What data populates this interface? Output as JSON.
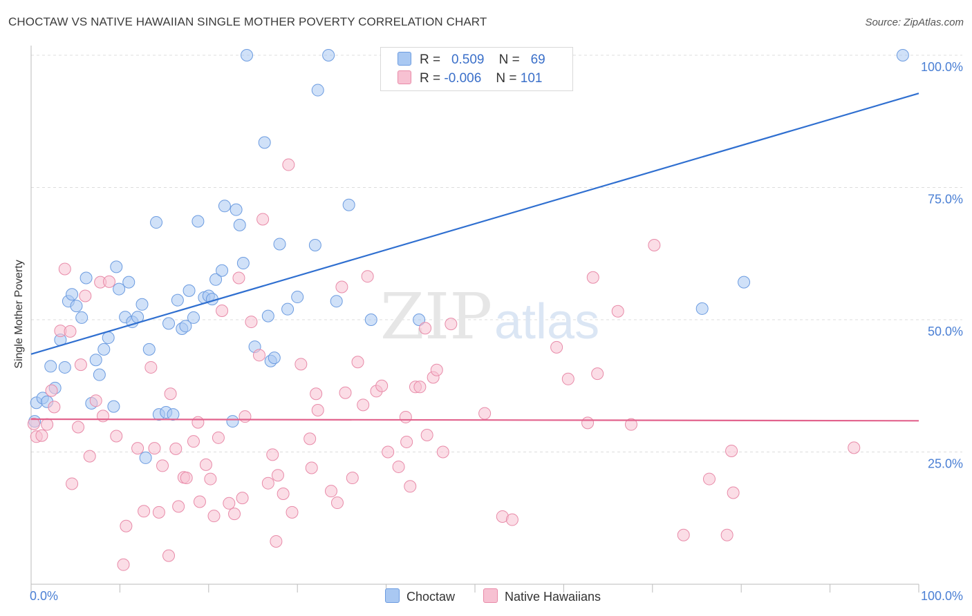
{
  "title": "CHOCTAW VS NATIVE HAWAIIAN SINGLE MOTHER POVERTY CORRELATION CHART",
  "source": "Source: ZipAtlas.com",
  "watermark": {
    "zip": "ZIP",
    "atlas": "atlas"
  },
  "legend": {
    "rows": [
      {
        "r_label": "R =",
        "r_value": "0.509",
        "n_label": "N =",
        "n_value": "69",
        "color": "#a9c8f2",
        "edge": "#6b9be0"
      },
      {
        "r_label": "R =",
        "r_value": "-0.006",
        "n_label": "N =",
        "n_value": "101",
        "color": "#f7c1d2",
        "edge": "#e88aa8"
      }
    ]
  },
  "bottom_legend": [
    {
      "label": "Choctaw",
      "color": "#a9c8f2",
      "edge": "#6b9be0"
    },
    {
      "label": "Native Hawaiians",
      "color": "#f7c1d2",
      "edge": "#e88aa8"
    }
  ],
  "chart_data": {
    "type": "scatter",
    "title": "CHOCTAW VS NATIVE HAWAIIAN SINGLE MOTHER POVERTY CORRELATION CHART",
    "xlabel": "",
    "ylabel": "Single Mother Poverty",
    "xlim": [
      0,
      100
    ],
    "ylim": [
      0,
      100
    ],
    "x_tick_labels": [
      {
        "value": 0,
        "label": "0.0%"
      },
      {
        "value": 100,
        "label": "100.0%"
      }
    ],
    "y_tick_labels": [
      {
        "value": 25,
        "label": "25.0%"
      },
      {
        "value": 50,
        "label": "50.0%"
      },
      {
        "value": 75,
        "label": "75.0%"
      },
      {
        "value": 100,
        "label": "100.0%"
      }
    ],
    "grid": "horizontal dashed",
    "legend_position": "top-center",
    "series": [
      {
        "name": "Choctaw",
        "color": "#a9c8f2",
        "edge": "#6b9be0",
        "trend": {
          "x": [
            0,
            100
          ],
          "y": [
            43.5,
            92.8
          ],
          "color": "#2f6fd0"
        },
        "points": [
          [
            0.4,
            30.8
          ],
          [
            0.6,
            34.3
          ],
          [
            1.3,
            35.2
          ],
          [
            1.8,
            34.5
          ],
          [
            2.2,
            41.2
          ],
          [
            2.7,
            37.1
          ],
          [
            3.3,
            46.2
          ],
          [
            3.8,
            41
          ],
          [
            4.2,
            53.5
          ],
          [
            4.6,
            54.8
          ],
          [
            5.1,
            52.6
          ],
          [
            5.7,
            50.4
          ],
          [
            6.2,
            57.9
          ],
          [
            6.8,
            34.2
          ],
          [
            7.3,
            42.4
          ],
          [
            7.7,
            39.6
          ],
          [
            8.2,
            44.4
          ],
          [
            8.7,
            46.6
          ],
          [
            9.3,
            33.6
          ],
          [
            9.6,
            60
          ],
          [
            9.9,
            55.8
          ],
          [
            10.6,
            50.5
          ],
          [
            11,
            57.1
          ],
          [
            11.4,
            49.6
          ],
          [
            12,
            50.5
          ],
          [
            12.5,
            52.9
          ],
          [
            12.9,
            23.9
          ],
          [
            13.3,
            44.4
          ],
          [
            14.1,
            68.4
          ],
          [
            14.4,
            32.1
          ],
          [
            15.2,
            32.5
          ],
          [
            15.5,
            49.3
          ],
          [
            16,
            32.1
          ],
          [
            16.5,
            53.7
          ],
          [
            17,
            48.3
          ],
          [
            17.4,
            48.8
          ],
          [
            17.8,
            55.5
          ],
          [
            18.3,
            50.4
          ],
          [
            18.8,
            68.6
          ],
          [
            19.5,
            54.2
          ],
          [
            20,
            54.5
          ],
          [
            20.4,
            53.9
          ],
          [
            20.8,
            57.6
          ],
          [
            21.5,
            59.3
          ],
          [
            21.8,
            71.5
          ],
          [
            22.7,
            30.8
          ],
          [
            23.1,
            70.8
          ],
          [
            23.5,
            67.9
          ],
          [
            23.9,
            60.7
          ],
          [
            24.3,
            100
          ],
          [
            25.2,
            44.9
          ],
          [
            26.3,
            83.5
          ],
          [
            26.7,
            50.7
          ],
          [
            27,
            42.2
          ],
          [
            27.4,
            42.8
          ],
          [
            28,
            64.3
          ],
          [
            28.9,
            52
          ],
          [
            30,
            54.3
          ],
          [
            32,
            64.1
          ],
          [
            32.3,
            93.4
          ],
          [
            33.5,
            100
          ],
          [
            34.4,
            53.5
          ],
          [
            35.8,
            71.7
          ],
          [
            38.3,
            50
          ],
          [
            43.7,
            50
          ],
          [
            48.2,
            100
          ],
          [
            75.6,
            52.1
          ],
          [
            80.3,
            57.1
          ],
          [
            98.2,
            100
          ]
        ]
      },
      {
        "name": "Native Hawaiians",
        "color": "#f7c1d2",
        "edge": "#e88aa8",
        "trend": {
          "x": [
            0,
            100
          ],
          "y": [
            31.2,
            30.9
          ],
          "color": "#e2638d"
        },
        "points": [
          [
            0.3,
            30.3
          ],
          [
            0.6,
            27.9
          ],
          [
            1.2,
            28.1
          ],
          [
            1.8,
            30.2
          ],
          [
            2.3,
            36.6
          ],
          [
            2.6,
            33.5
          ],
          [
            3.3,
            47.9
          ],
          [
            3.8,
            59.6
          ],
          [
            4.4,
            47.8
          ],
          [
            4.6,
            19
          ],
          [
            5.3,
            29.7
          ],
          [
            5.6,
            41.5
          ],
          [
            6.1,
            54.5
          ],
          [
            6.6,
            24.2
          ],
          [
            7.3,
            34.7
          ],
          [
            7.8,
            57.1
          ],
          [
            8.1,
            31.8
          ],
          [
            8.8,
            57.2
          ],
          [
            9.6,
            28
          ],
          [
            10.4,
            3.7
          ],
          [
            10.7,
            11
          ],
          [
            12,
            25.7
          ],
          [
            12.7,
            13.8
          ],
          [
            13.5,
            41
          ],
          [
            13.9,
            25.7
          ],
          [
            14.4,
            13.6
          ],
          [
            14.8,
            22.4
          ],
          [
            15.5,
            5.4
          ],
          [
            15.7,
            36
          ],
          [
            16.3,
            25.6
          ],
          [
            16.6,
            14.7
          ],
          [
            17.2,
            20.2
          ],
          [
            17.5,
            20.1
          ],
          [
            18.3,
            27
          ],
          [
            18.8,
            30.6
          ],
          [
            19,
            15.6
          ],
          [
            19.7,
            22.6
          ],
          [
            20.2,
            19.9
          ],
          [
            20.6,
            12.9
          ],
          [
            21.1,
            27.7
          ],
          [
            21.5,
            51.7
          ],
          [
            22.3,
            15.3
          ],
          [
            22.9,
            13.3
          ],
          [
            23.4,
            57.9
          ],
          [
            23.8,
            16.3
          ],
          [
            24.1,
            31.7
          ],
          [
            24.8,
            49.6
          ],
          [
            25.7,
            43.3
          ],
          [
            26.1,
            69
          ],
          [
            26.7,
            19.1
          ],
          [
            27.2,
            24.5
          ],
          [
            27.6,
            8.1
          ],
          [
            27.8,
            20.6
          ],
          [
            28.4,
            17.1
          ],
          [
            29,
            79.3
          ],
          [
            29.4,
            13.6
          ],
          [
            30.4,
            41.6
          ],
          [
            31.4,
            27.5
          ],
          [
            31.6,
            22
          ],
          [
            32.1,
            36
          ],
          [
            32.3,
            32.9
          ],
          [
            33.8,
            17.6
          ],
          [
            34.5,
            15.4
          ],
          [
            35,
            56.2
          ],
          [
            35.4,
            36.2
          ],
          [
            36.2,
            20.1
          ],
          [
            36.8,
            42
          ],
          [
            37.4,
            33.9
          ],
          [
            37.9,
            58.2
          ],
          [
            38.9,
            36.5
          ],
          [
            39.5,
            37.5
          ],
          [
            40.2,
            25
          ],
          [
            41.4,
            22.2
          ],
          [
            42.2,
            31.6
          ],
          [
            42.3,
            26.9
          ],
          [
            42.7,
            18.5
          ],
          [
            43.3,
            37.3
          ],
          [
            43.8,
            37.3
          ],
          [
            44.4,
            48.4
          ],
          [
            44.6,
            28.2
          ],
          [
            45.3,
            39.1
          ],
          [
            45.7,
            40.5
          ],
          [
            46.4,
            25
          ],
          [
            47.3,
            49.2
          ],
          [
            51.1,
            32.3
          ],
          [
            53.1,
            12.8
          ],
          [
            54.2,
            12.2
          ],
          [
            59.2,
            44.8
          ],
          [
            60.5,
            38.8
          ],
          [
            62.7,
            30.5
          ],
          [
            63.3,
            58
          ],
          [
            63.8,
            39.8
          ],
          [
            66.1,
            51.6
          ],
          [
            67.6,
            30.2
          ],
          [
            70.2,
            64.1
          ],
          [
            73.5,
            9.3
          ],
          [
            76.4,
            19.9
          ],
          [
            78.4,
            9.3
          ],
          [
            78.9,
            25.2
          ],
          [
            79.1,
            17.3
          ],
          [
            92.7,
            25.8
          ]
        ]
      }
    ]
  }
}
